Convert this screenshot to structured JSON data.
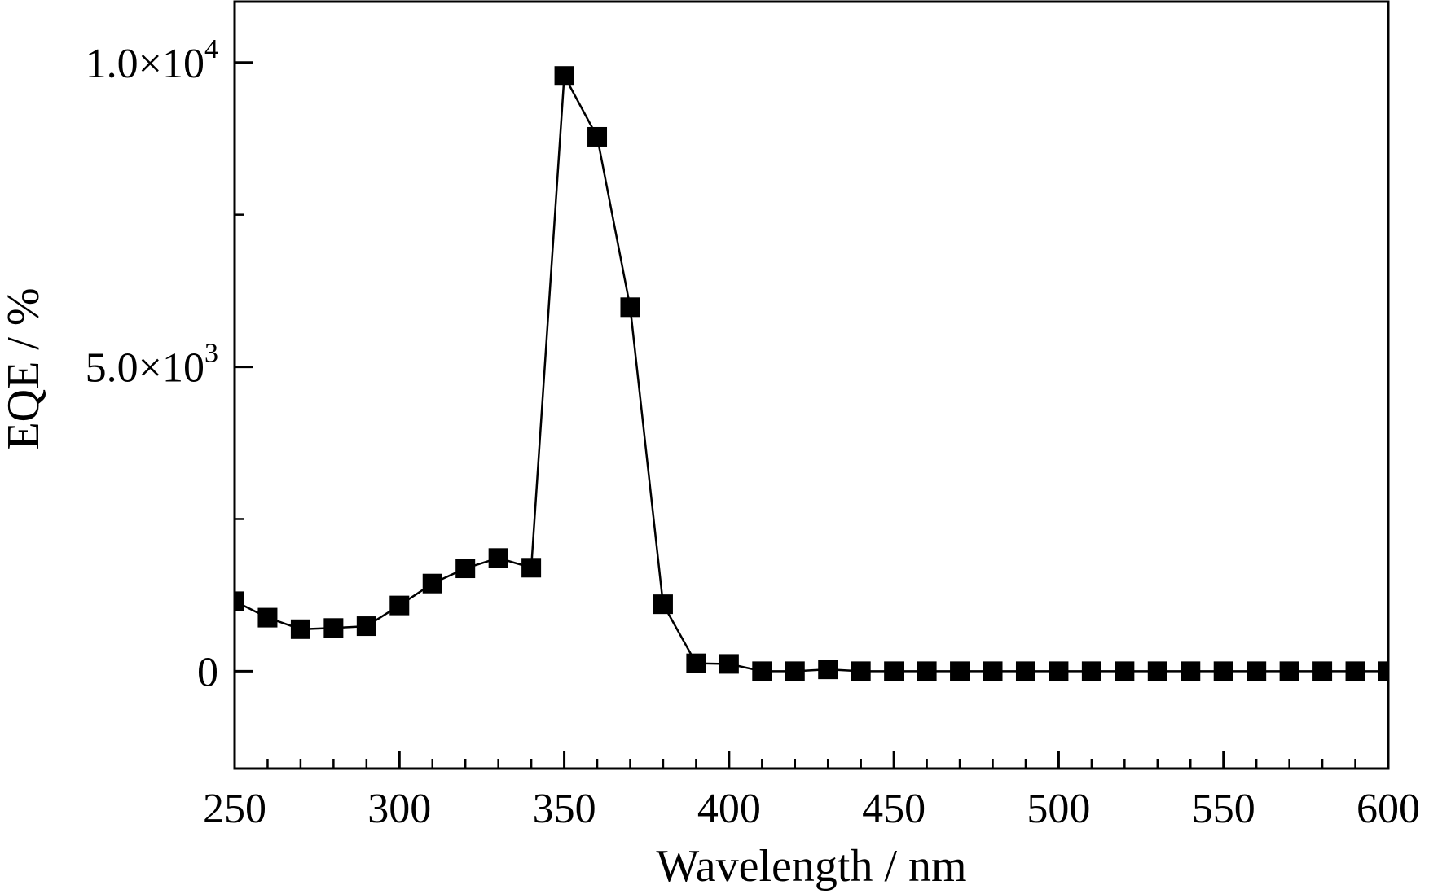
{
  "chart_data": {
    "type": "line",
    "title": "",
    "xlabel": "Wavelength / nm",
    "ylabel": "EQE / %",
    "xlim": [
      250,
      600
    ],
    "ylim": [
      -1600,
      11000
    ],
    "x_ticks": [
      250,
      300,
      350,
      400,
      450,
      500,
      550,
      600
    ],
    "x_tick_labels": [
      "250",
      "300",
      "350",
      "400",
      "450",
      "500",
      "550",
      "600"
    ],
    "y_ticks": [
      {
        "value": 10000,
        "mantissa": "1.0×10",
        "exponent": "4"
      },
      {
        "value": 5000,
        "mantissa": "5.0×10",
        "exponent": "3"
      },
      {
        "value": 0,
        "mantissa": "0",
        "exponent": ""
      }
    ],
    "x_minor_step": 10,
    "y_minor_step": 2500,
    "grid": false,
    "marker": "square",
    "color": "#000000",
    "series": [
      {
        "x": [
          250,
          260,
          270,
          280,
          290,
          300,
          310,
          320,
          330,
          340,
          350,
          360,
          370,
          380,
          390,
          400,
          410,
          420,
          430,
          440,
          450,
          460,
          470,
          480,
          490,
          500,
          510,
          520,
          530,
          540,
          550,
          560,
          570,
          580,
          590,
          600
        ],
        "y": [
          1150,
          880,
          690,
          710,
          740,
          1080,
          1440,
          1690,
          1860,
          1700,
          9780,
          8780,
          5980,
          1100,
          130,
          120,
          0,
          0,
          30,
          0,
          0,
          0,
          0,
          0,
          0,
          0,
          0,
          0,
          0,
          0,
          0,
          0,
          0,
          0,
          0,
          0
        ]
      }
    ]
  }
}
